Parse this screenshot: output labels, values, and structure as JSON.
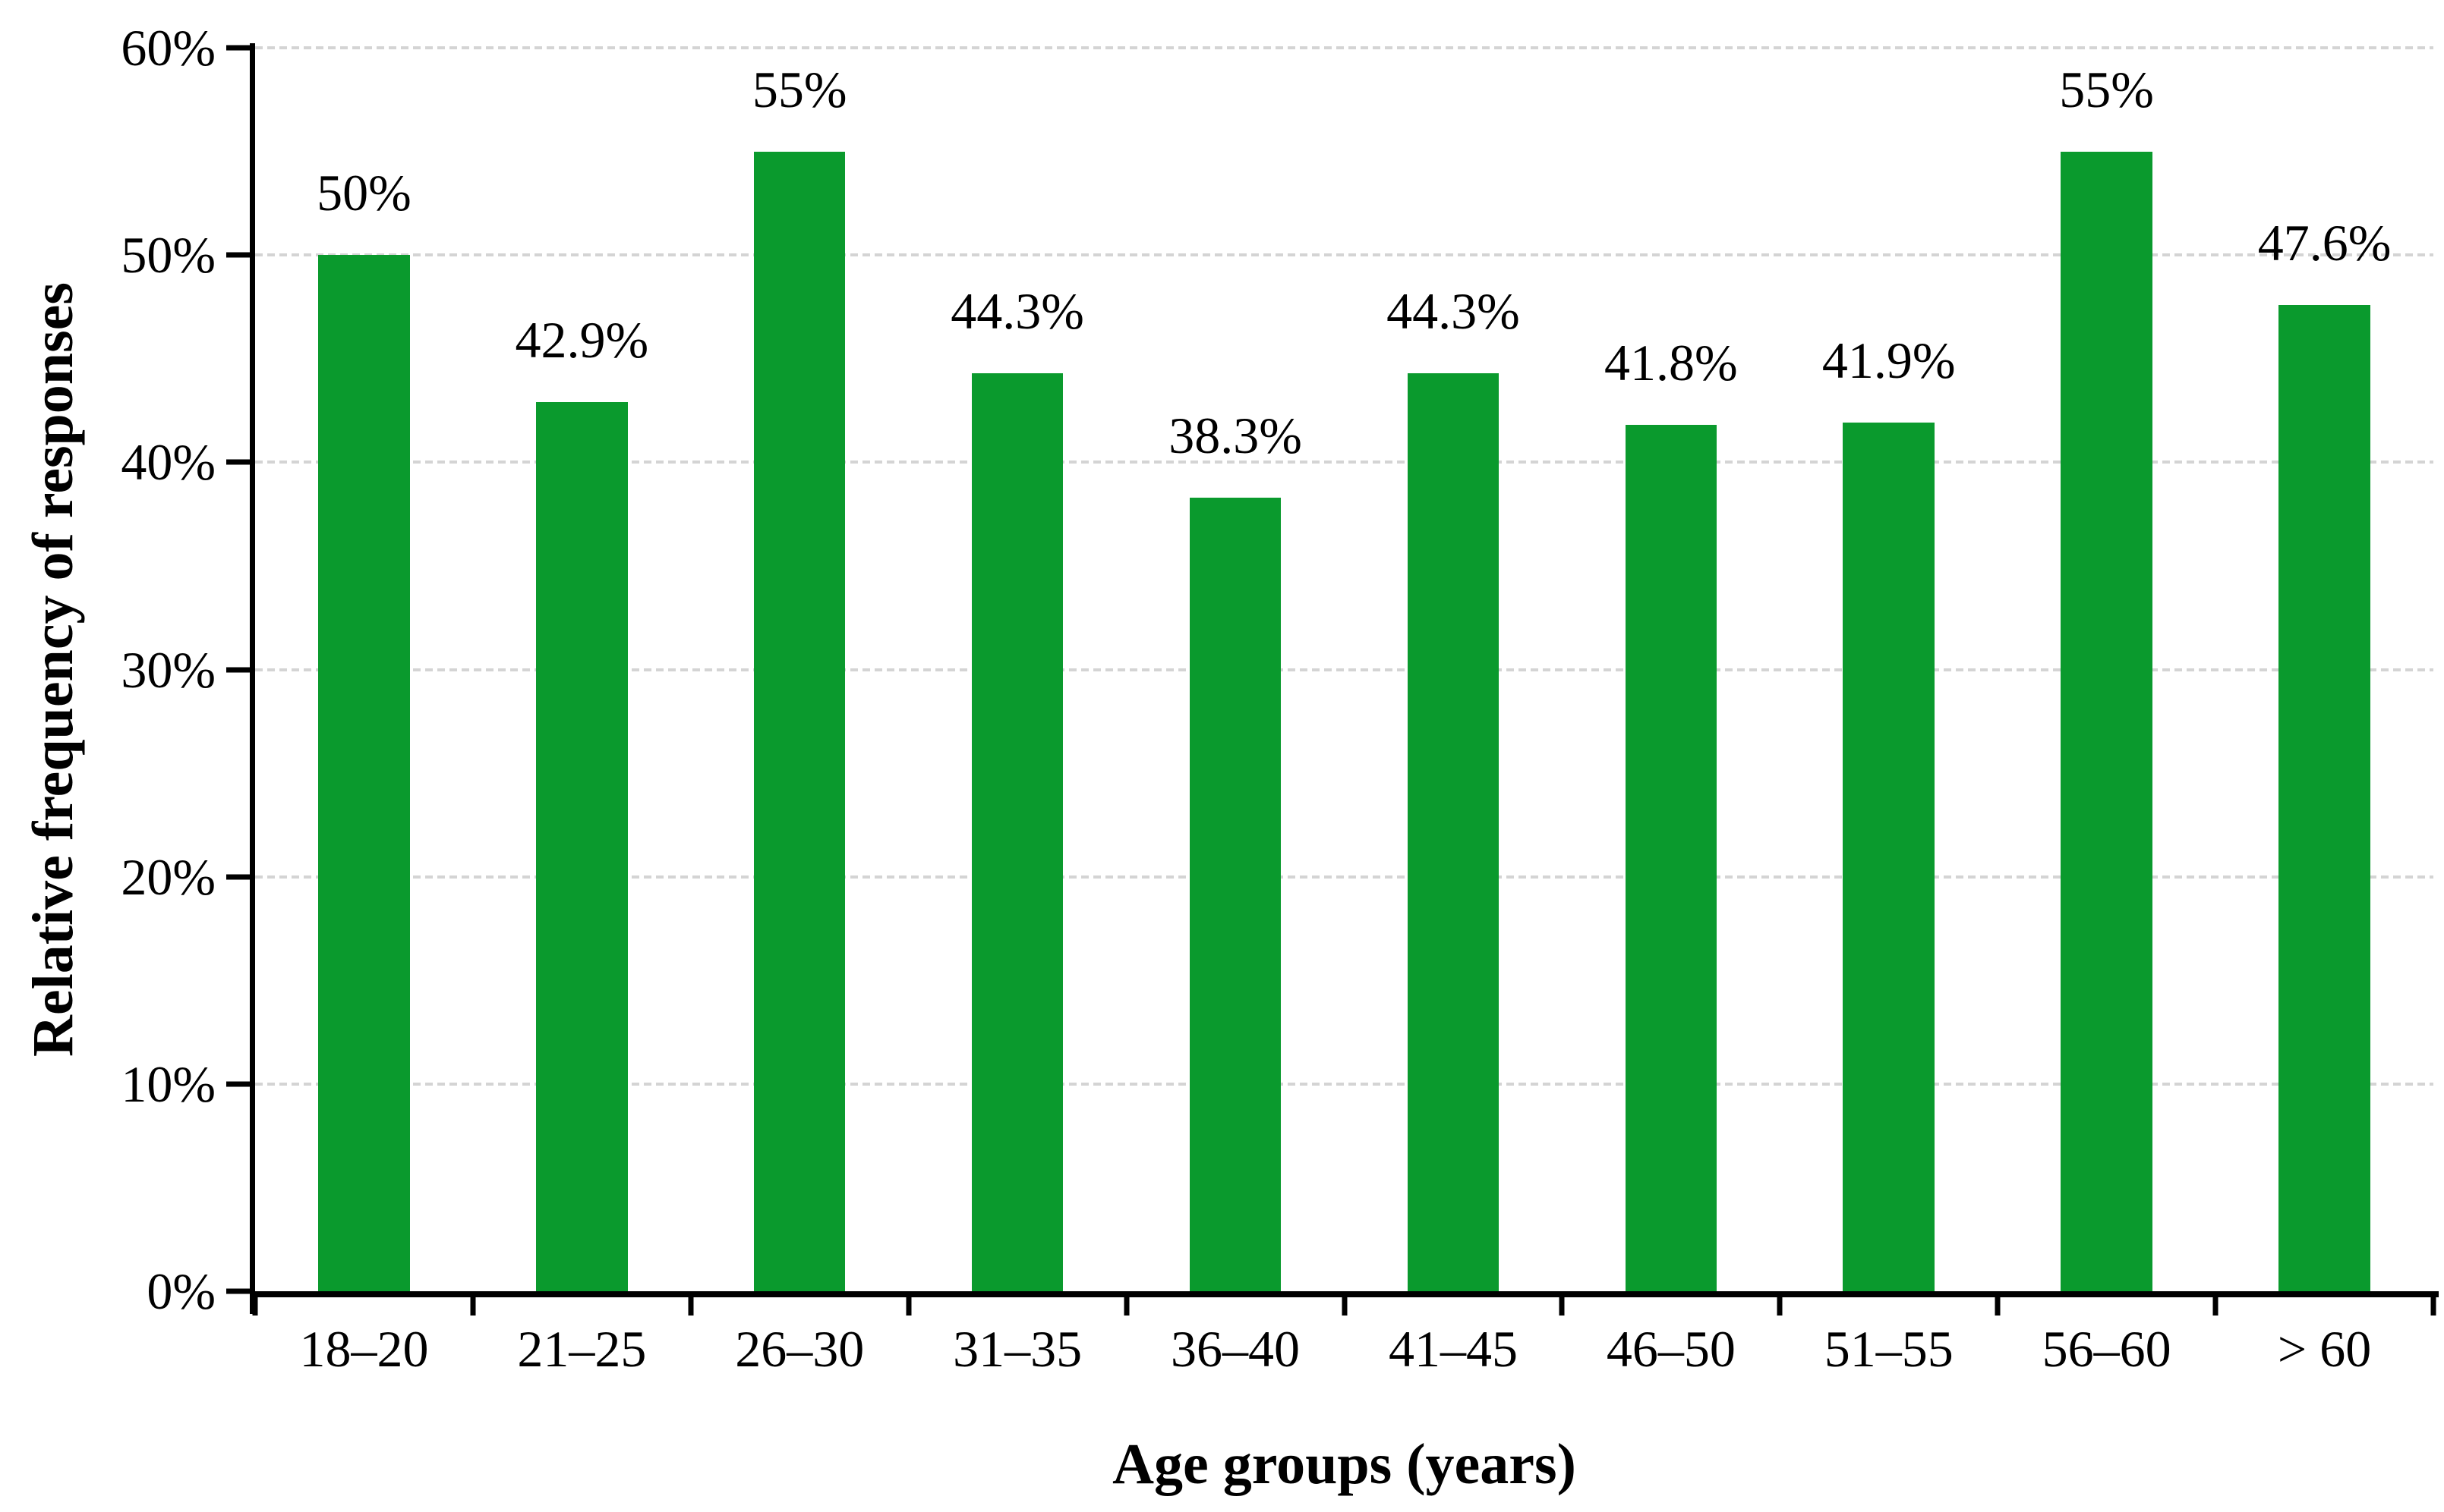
{
  "chart_data": {
    "type": "bar",
    "title": "",
    "xlabel": "Age groups (years)",
    "ylabel": "Relative frequency of responses",
    "categories": [
      "18–20",
      "21–25",
      "26–30",
      "31–35",
      "36–40",
      "41–45",
      "46–50",
      "51–55",
      "56–60",
      "> 60"
    ],
    "values": [
      50,
      42.9,
      55,
      44.3,
      38.3,
      44.3,
      41.8,
      41.9,
      55,
      47.6
    ],
    "bar_labels": [
      "50%",
      "42.9%",
      "55%",
      "44.3%",
      "38.3%",
      "44.3%",
      "41.8%",
      "41.9%",
      "55%",
      "47.6%"
    ],
    "ylim": [
      0,
      60
    ],
    "ytick_step": 10,
    "ytick_labels": [
      "0%",
      "10%",
      "20%",
      "30%",
      "40%",
      "50%",
      "60%"
    ],
    "grid": "horizontal-dashed",
    "legend": "none",
    "colors": {
      "bar": "#0a9a2d",
      "gridline": "#d4d4d4",
      "axis": "#000000",
      "background": "#ffffff",
      "text": "#000000"
    }
  }
}
